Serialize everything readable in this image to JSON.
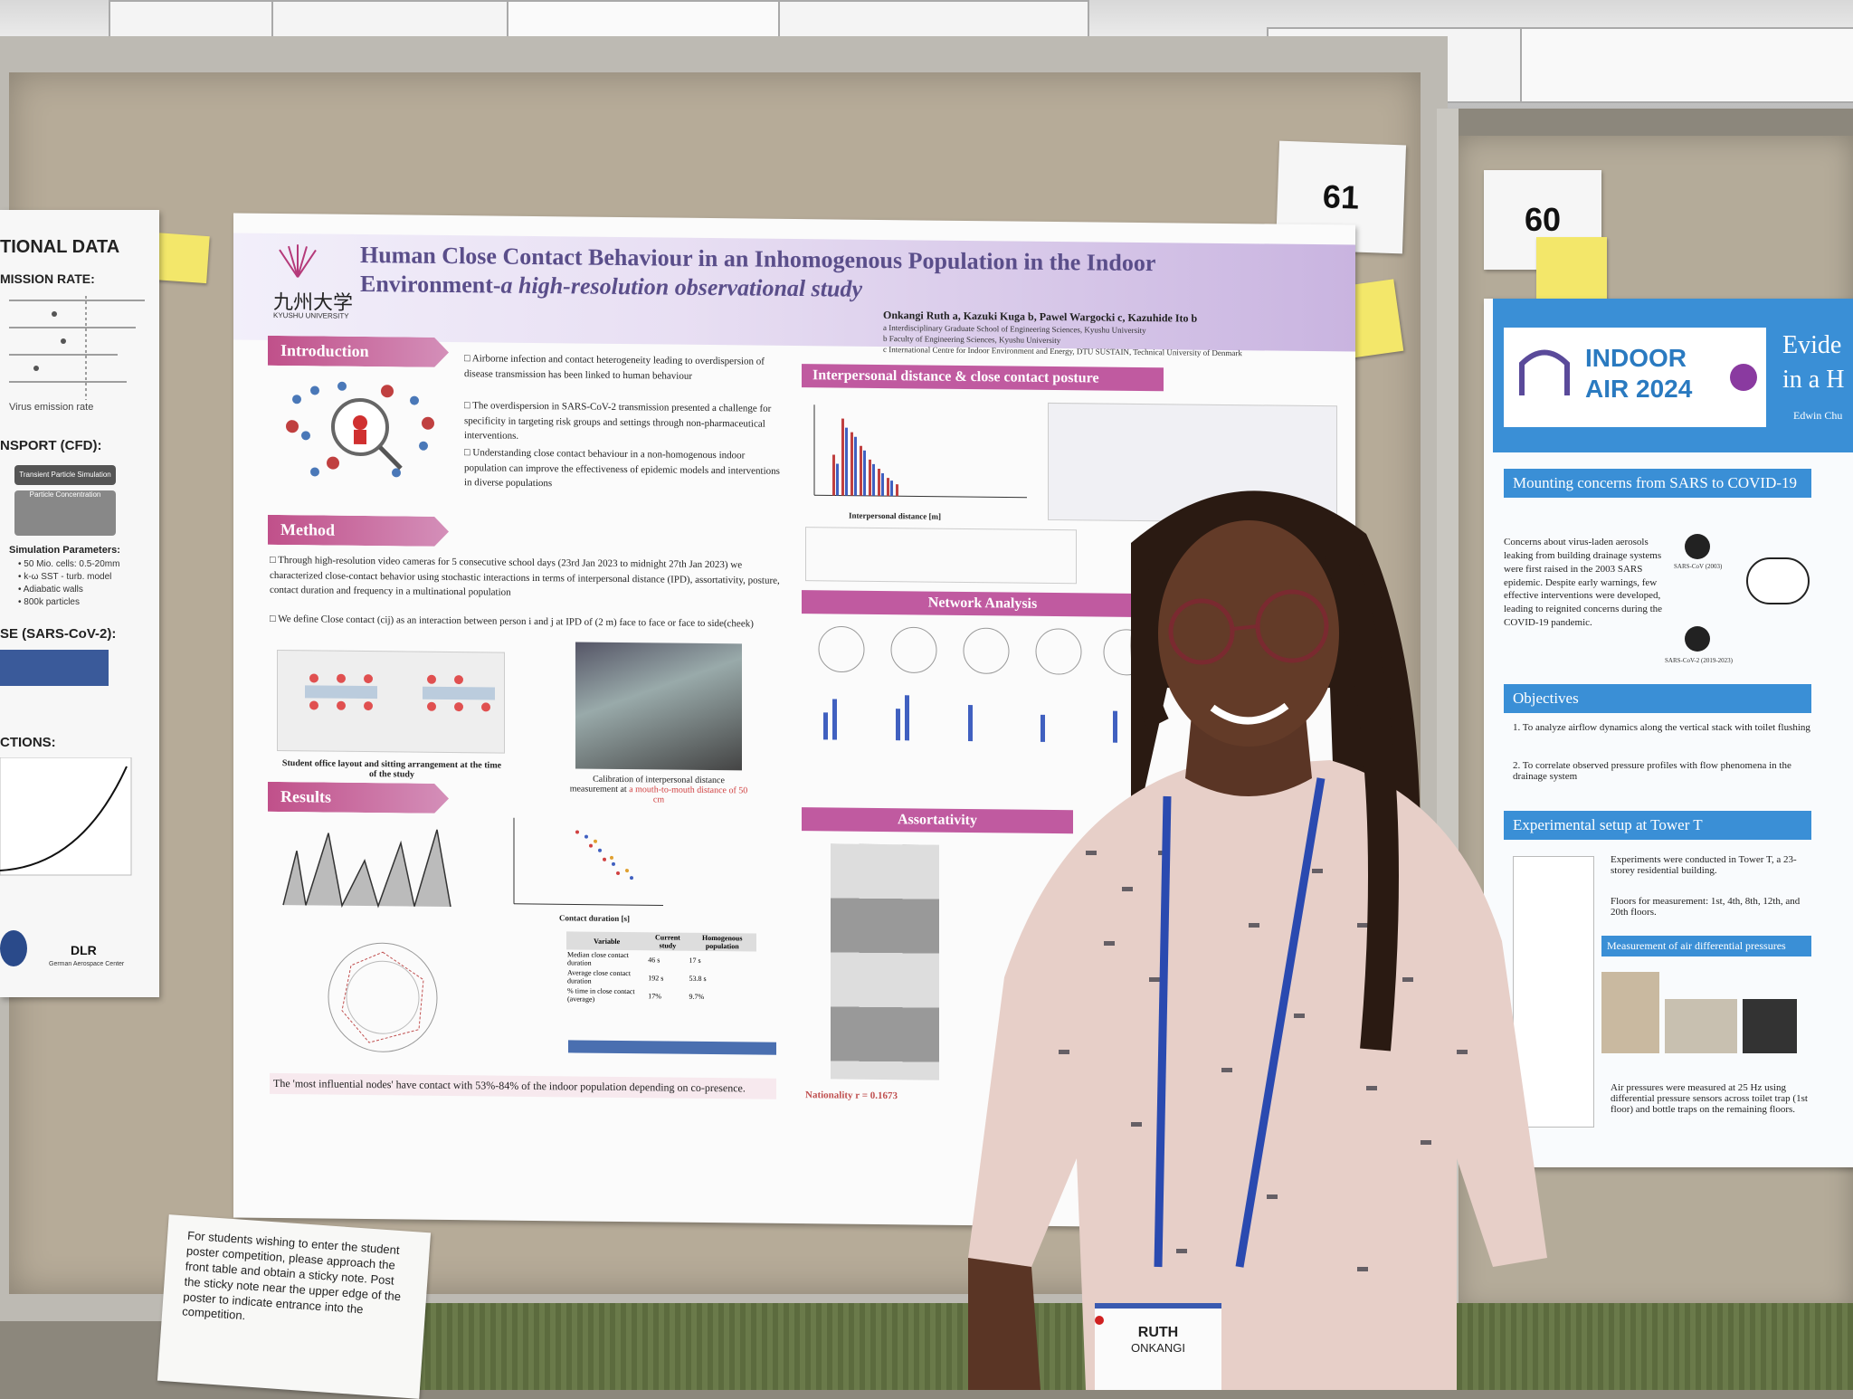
{
  "poster_number_61": "61",
  "poster_number_60": "60",
  "main_poster": {
    "university_kanji": "九州大学",
    "university_name": "KYUSHU UNIVERSITY",
    "title_line1": "Human Close Contact Behaviour in an Inhomogenous Population in the Indoor",
    "title_line2": "Environment-",
    "title_italic": "a high-resolution observational study",
    "authors": "Onkangi Ruth a, Kazuki Kuga b, Pawel Wargocki c, Kazuhide Ito b",
    "affil_a": "a Interdisciplinary Graduate School of Engineering Sciences, Kyushu University",
    "affil_b": "b Faculty of Engineering Sciences, Kyushu University",
    "affil_c": "c International Centre for Indoor Environment and Energy, DTU SUSTAIN, Technical University of Denmark",
    "intro_heading": "Introduction",
    "intro_b1": "Airborne infection and contact heterogeneity leading to overdispersion of disease transmission has been linked to human behaviour",
    "intro_b2": "The overdispersion in SARS-CoV-2 transmission presented a challenge for specificity in targeting risk groups and settings through non-pharmaceutical interventions.",
    "intro_b3": "Understanding close contact behaviour in a non-homogenous indoor population can improve the effectiveness of epidemic models and interventions in diverse populations",
    "method_heading": "Method",
    "method_b1": "Through high-resolution video cameras for 5 consecutive school days (23rd Jan 2023 to midnight 27th Jan 2023) we characterized close-contact behavior using stochastic interactions in terms of interpersonal distance (IPD), assortativity, posture, contact duration and frequency in a multinational population",
    "method_b2": "We define Close contact (cij) as an interaction between person i and j at IPD of (2 m) face to face or face to side(cheek)",
    "layout_caption": "Student office layout and sitting arrangement at the time of the study",
    "photo_caption": "Calibration of interpersonal distance measurement at",
    "photo_caption_red": "a mouth-to-mouth distance of 50 cm",
    "results_heading": "Results",
    "ipd_heading": "Interpersonal distance & close contact posture",
    "ipd_xlabel": "Interpersonal distance [m]",
    "network_heading": "Network Analysis",
    "assort_heading": "Assortativity",
    "nationality": "Nationality r = 0.1673",
    "contact_duration_label": "Contact duration [s]",
    "footer_note": "The 'most influential nodes' have contact with 53%-84% of the indoor population depending on co-presence.",
    "table_headers": [
      "Variable",
      "Current study",
      "Homogenous population"
    ],
    "table_rows": [
      [
        "Median close contact duration",
        "46 s",
        "17 s"
      ],
      [
        "Average close contact duration",
        "192 s",
        "53.8 s"
      ],
      [
        "% time in close contact (average)",
        "17%",
        "9.7%"
      ]
    ]
  },
  "right_poster": {
    "logo_line1": "INDOOR",
    "logo_line2": "AIR 2024",
    "title_fragment1": "Evide",
    "title_fragment2": "in a H",
    "author_fragment": "Edwin Chu",
    "section1": "Mounting concerns from SARS to COVID-19",
    "section1_text": "Concerns about virus-laden aerosols leaking from building drainage systems were first raised in the 2003 SARS epidemic. Despite early warnings, few effective interventions were developed, leading to reignited concerns during the COVID-19 pandemic.",
    "sars_label": "SARS-CoV (2003)",
    "sars2_label": "SARS-CoV-2 (2019-2023)",
    "section2": "Objectives",
    "obj1": "1. To analyze airflow dynamics along the vertical stack with toilet flushing",
    "obj2": "2. To correlate observed pressure profiles with flow phenomena in the drainage system",
    "section3": "Experimental setup at Tower T",
    "setup1": "Experiments were conducted in Tower T, a 23-storey residential building.",
    "setup2": "Floors for measurement: 1st, 4th, 8th, 12th, and 20th floors.",
    "subsection": "Measurement of air differential pressures",
    "setup3": "Air pressures were measured at 25 Hz using differential pressure sensors across toilet trap (1st floor) and bottle traps on the remaining floors."
  },
  "left_poster": {
    "heading1": "TIONAL DATA",
    "heading2": "MISSION RATE:",
    "heading3": "NSPORT (CFD):",
    "sim_title": "Transient Particle Simulation",
    "sim_sub": "Particle Concentration",
    "params_title": "Simulation Parameters:",
    "param1": "• 50 Mio. cells: 0.5-20mm",
    "param2": "• k-ω SST - turb. model",
    "param3": "• Adiabatic walls",
    "param4": "• 800k particles",
    "heading4": "SE (SARS-CoV-2):",
    "heading5": "CTIONS:",
    "x_label": "Virus emission rate",
    "logo": "DLR",
    "logo_sub": "German Aerospace Center"
  },
  "note_card": "For students wishing to enter the student poster competition, please approach the front table and obtain a sticky note. Post the sticky note near the upper edge of the poster to indicate entrance into the competition.",
  "badge": {
    "first": "RUTH",
    "last": "ONKANGI"
  }
}
